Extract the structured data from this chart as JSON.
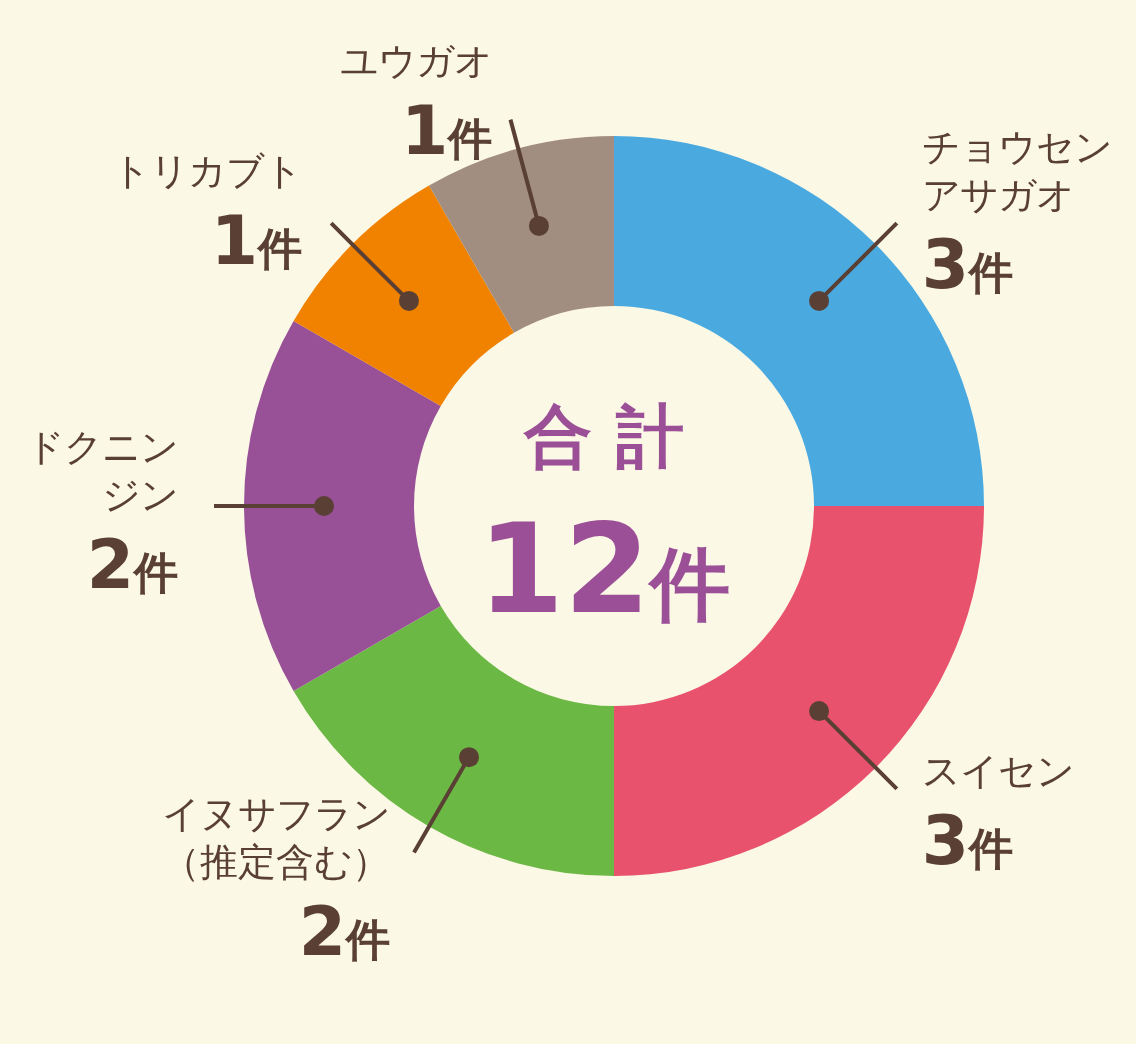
{
  "chart_data": {
    "type": "donut",
    "categories": [
      "チョウセンアサガオ",
      "スイセン",
      "イヌサフラン（推定含む）",
      "ドクニンジン",
      "トリカブト",
      "ユウガオ"
    ],
    "values": [
      3,
      3,
      2,
      2,
      1,
      1
    ],
    "colors": [
      "#4aaae0",
      "#e8526c",
      "#6cb844",
      "#985097",
      "#f08200",
      "#a28e80"
    ],
    "value_labels": [
      "3件",
      "3件",
      "2件",
      "2件",
      "1件",
      "1件"
    ],
    "annotations": [
      "合 計",
      "12件"
    ],
    "legend": false
  }
}
